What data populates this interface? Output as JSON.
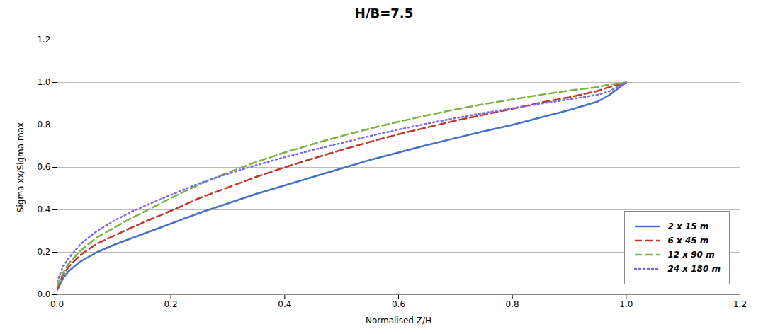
{
  "chart_data": {
    "type": "line",
    "title": "H/B=7.5",
    "xlabel": "Normalised Z/H",
    "ylabel": "Sigma xx/Sigma max",
    "x": [
      0.0,
      0.01,
      0.02,
      0.04,
      0.07,
      0.1,
      0.13,
      0.16,
      0.2,
      0.25,
      0.3,
      0.35,
      0.4,
      0.45,
      0.5,
      0.55,
      0.6,
      0.65,
      0.7,
      0.75,
      0.8,
      0.85,
      0.9,
      0.95,
      0.97,
      1.0
    ],
    "series": [
      {
        "name": "2 x 15 m",
        "color": "#4472C4",
        "line_style": "solid",
        "values": [
          0.02,
          0.075,
          0.11,
          0.155,
          0.2,
          0.235,
          0.265,
          0.295,
          0.335,
          0.385,
          0.43,
          0.475,
          0.515,
          0.555,
          0.595,
          0.635,
          0.67,
          0.705,
          0.738,
          0.77,
          0.8,
          0.835,
          0.87,
          0.91,
          0.94,
          1.0
        ]
      },
      {
        "name": "6 x 45 m",
        "color": "#C0392B",
        "line_style": "dashed",
        "values": [
          0.025,
          0.09,
          0.13,
          0.185,
          0.24,
          0.278,
          0.315,
          0.35,
          0.395,
          0.455,
          0.505,
          0.555,
          0.6,
          0.642,
          0.682,
          0.72,
          0.756,
          0.788,
          0.82,
          0.848,
          0.876,
          0.905,
          0.93,
          0.96,
          0.978,
          1.0
        ]
      },
      {
        "name": "12 x 90 m",
        "color": "#7CB342",
        "line_style": "dashed",
        "values": [
          0.04,
          0.1,
          0.145,
          0.205,
          0.27,
          0.315,
          0.36,
          0.4,
          0.455,
          0.52,
          0.575,
          0.625,
          0.67,
          0.71,
          0.748,
          0.783,
          0.815,
          0.845,
          0.873,
          0.898,
          0.92,
          0.942,
          0.962,
          0.978,
          0.99,
          1.0
        ]
      },
      {
        "name": "24 x 180 m",
        "color": "#7B68EE",
        "line_style": "dotted",
        "values": [
          0.06,
          0.13,
          0.17,
          0.235,
          0.3,
          0.348,
          0.39,
          0.425,
          0.47,
          0.525,
          0.57,
          0.61,
          0.648,
          0.682,
          0.715,
          0.748,
          0.778,
          0.806,
          0.832,
          0.856,
          0.878,
          0.9,
          0.92,
          0.942,
          0.958,
          1.0
        ]
      }
    ],
    "xlim": [
      0,
      1.2
    ],
    "ylim": [
      0,
      1.2
    ],
    "xticks": [
      {
        "value": 0,
        "label": "0.0"
      },
      0.2,
      0.4,
      0.6,
      0.8,
      {
        "value": 1.0,
        "label": "1.0"
      },
      1.2
    ],
    "yticks": [
      {
        "value": 0,
        "label": "0.0"
      },
      0.2,
      0.4,
      0.6,
      0.8,
      {
        "value": 1.0,
        "label": "1.0"
      },
      1.2
    ],
    "grid": "y",
    "legend": "lower right"
  }
}
